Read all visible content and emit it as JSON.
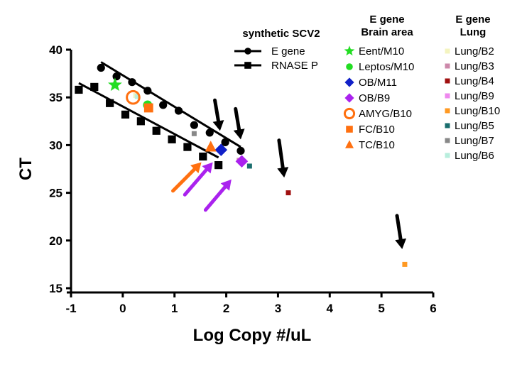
{
  "chart_data": {
    "type": "scatter",
    "xlabel": "Log Copy #/uL",
    "ylabel": "CT",
    "xlim": [
      -1,
      6
    ],
    "ylim": [
      15,
      40
    ],
    "xticks": [
      "-1",
      "0",
      "1",
      "2",
      "3",
      "4",
      "5",
      "6"
    ],
    "yticks": [
      "15",
      "20",
      "25",
      "30",
      "35",
      "40"
    ],
    "grid": false,
    "standards_legend_title": "synthetic SCV2",
    "brain_legend_title": "E gene\nBrain area",
    "lung_legend_title": "E gene\nLung",
    "series": [
      {
        "name": "E gene",
        "marker": "circle",
        "color": "#000000",
        "x": [
          -0.42,
          -0.12,
          0.18,
          0.48,
          0.78,
          1.08,
          1.38,
          1.68,
          1.98,
          2.28
        ],
        "y": [
          38.1,
          37.2,
          36.6,
          35.7,
          34.2,
          33.6,
          32.1,
          31.3,
          30.3,
          29.4
        ],
        "fit": [
          [
            -0.42,
            38.7
          ],
          [
            2.28,
            29.8
          ]
        ]
      },
      {
        "name": "RNASE P",
        "marker": "square",
        "color": "#000000",
        "x": [
          -0.85,
          -0.55,
          -0.25,
          0.05,
          0.35,
          0.65,
          0.95,
          1.25,
          1.55,
          1.85
        ],
        "y": [
          35.8,
          36.1,
          34.4,
          33.2,
          32.5,
          31.5,
          30.6,
          29.8,
          28.8,
          27.9
        ],
        "fit": [
          [
            -0.85,
            36.5
          ],
          [
            1.85,
            28.7
          ]
        ]
      },
      {
        "name": "Eent/M10",
        "group": "brain",
        "marker": "star",
        "color": "#22dd22",
        "x": [
          -0.15
        ],
        "y": [
          36.3
        ]
      },
      {
        "name": "Leptos/M10",
        "group": "brain",
        "marker": "circle",
        "color": "#22dd22",
        "x": [
          0.48
        ],
        "y": [
          34.2
        ]
      },
      {
        "name": "OB/M11",
        "group": "brain",
        "marker": "diamond",
        "color": "#1020c8",
        "x": [
          1.9
        ],
        "y": [
          29.5
        ]
      },
      {
        "name": "OB/B9",
        "group": "brain",
        "marker": "diamond",
        "color": "#aa22ee",
        "x": [
          2.3
        ],
        "y": [
          28.3
        ]
      },
      {
        "name": "AMYG/B10",
        "group": "brain",
        "marker": "circle-open",
        "color": "#ff7010",
        "x": [
          0.2
        ],
        "y": [
          35.0
        ]
      },
      {
        "name": "FC/B10",
        "group": "brain",
        "marker": "square",
        "color": "#ff7010",
        "x": [
          0.5
        ],
        "y": [
          33.9
        ]
      },
      {
        "name": "TC/B10",
        "group": "brain",
        "marker": "triangle",
        "color": "#ff7010",
        "x": [
          1.7
        ],
        "y": [
          29.8
        ]
      },
      {
        "name": "Lung/B2",
        "group": "lung",
        "marker": "small-square",
        "color": "#f4f4c0",
        "x": [
          0.25
        ],
        "y": [
          35.2
        ]
      },
      {
        "name": "Lung/B3",
        "group": "lung",
        "marker": "small-square",
        "color": "#cc88aa",
        "x": [
          2.25
        ],
        "y": [
          28.4
        ]
      },
      {
        "name": "Lung/B4",
        "group": "lung",
        "marker": "small-square",
        "color": "#a01010",
        "x": [
          3.2
        ],
        "y": [
          25.0
        ]
      },
      {
        "name": "Lung/B9",
        "group": "lung",
        "marker": "small-square",
        "color": "#ee88ee",
        "x": [
          2.3
        ],
        "y": [
          28.2
        ]
      },
      {
        "name": "Lung/B10",
        "group": "lung",
        "marker": "small-square",
        "color": "#ff9922",
        "x": [
          5.45
        ],
        "y": [
          17.5
        ]
      },
      {
        "name": "Lung/B5",
        "group": "lung",
        "marker": "small-square",
        "color": "#1a6e6e",
        "x": [
          2.45
        ],
        "y": [
          27.8
        ]
      },
      {
        "name": "Lung/B7",
        "group": "lung",
        "marker": "small-square",
        "color": "#888888",
        "x": [
          1.38
        ],
        "y": [
          31.2
        ]
      },
      {
        "name": "Lung/B6",
        "group": "lung",
        "marker": "small-square",
        "color": "#b8eedd",
        "x": [
          0.28
        ],
        "y": [
          35.1
        ]
      }
    ],
    "arrows": [
      {
        "color": "#000000",
        "tip": [
          1.88,
          31.5
        ],
        "tail": [
          1.78,
          34.7
        ]
      },
      {
        "color": "#000000",
        "tip": [
          2.28,
          30.6
        ],
        "tail": [
          2.18,
          33.8
        ]
      },
      {
        "color": "#000000",
        "tip": [
          3.12,
          26.6
        ],
        "tail": [
          3.02,
          30.5
        ]
      },
      {
        "color": "#000000",
        "tip": [
          5.4,
          19.1
        ],
        "tail": [
          5.3,
          22.6
        ]
      },
      {
        "color": "#ff7010",
        "tip": [
          1.52,
          28.2
        ],
        "tail": [
          0.97,
          25.2
        ]
      },
      {
        "color": "#aa22ee",
        "tip": [
          1.74,
          28.2
        ],
        "tail": [
          1.2,
          24.8
        ]
      },
      {
        "color": "#aa22ee",
        "tip": [
          2.1,
          26.4
        ],
        "tail": [
          1.6,
          23.2
        ]
      }
    ]
  }
}
